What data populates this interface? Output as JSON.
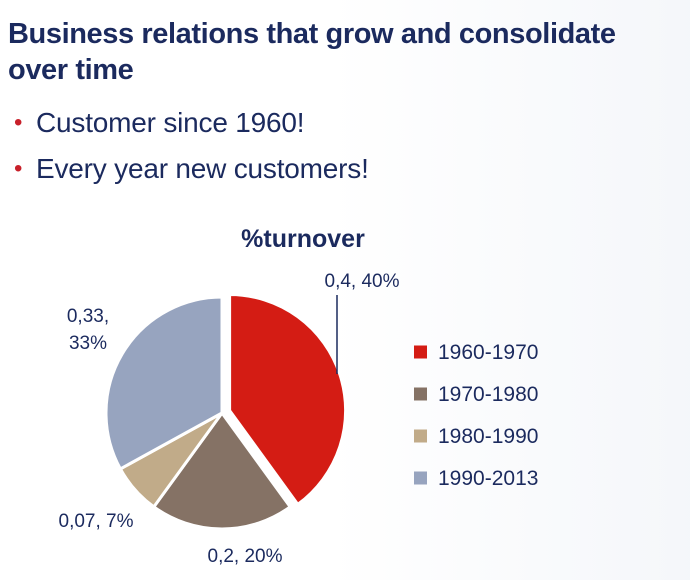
{
  "slide": {
    "title": "Business relations that grow and consolidate over time",
    "bullets": [
      "Customer since 1960!",
      "Every year new customers!"
    ],
    "bullet_color": "#c8202a",
    "text_color": "#1b2a5e"
  },
  "chart_data": {
    "type": "pie",
    "title": "%turnover",
    "categories": [
      "1960-1970",
      "1970-1980",
      "1980-1990",
      "1990-2013"
    ],
    "values": [
      0.4,
      0.2,
      0.07,
      0.33
    ],
    "data_labels": [
      "0,4, 40%",
      "0,2, 20%",
      "0,07, 7%",
      "0,33, 33%"
    ],
    "colors": [
      "#d41c14",
      "#857265",
      "#c1ab89",
      "#97a4bf"
    ],
    "exploded": [
      true,
      false,
      false,
      false
    ],
    "legend_position": "right"
  }
}
